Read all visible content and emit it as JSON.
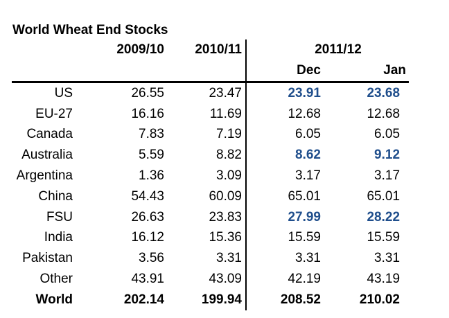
{
  "title": "World Wheat End Stocks",
  "colors": {
    "accent_blue": "#1F4E8C",
    "text": "#000000",
    "background": "#FFFFFF",
    "rule": "#000000"
  },
  "table": {
    "year_headers": [
      "2009/10",
      "2010/11",
      "2011/12"
    ],
    "sub_headers": [
      "Dec",
      "Jan"
    ],
    "rows": [
      {
        "label": "US",
        "values": [
          "26.55",
          "23.47",
          "23.91",
          "23.68"
        ],
        "highlight_dec_jan": true,
        "total": false
      },
      {
        "label": "EU-27",
        "values": [
          "16.16",
          "11.69",
          "12.68",
          "12.68"
        ],
        "highlight_dec_jan": false,
        "total": false
      },
      {
        "label": "Canada",
        "values": [
          "7.83",
          "7.19",
          "6.05",
          "6.05"
        ],
        "highlight_dec_jan": false,
        "total": false
      },
      {
        "label": "Australia",
        "values": [
          "5.59",
          "8.82",
          "8.62",
          "9.12"
        ],
        "highlight_dec_jan": true,
        "total": false
      },
      {
        "label": "Argentina",
        "values": [
          "1.36",
          "3.09",
          "3.17",
          "3.17"
        ],
        "highlight_dec_jan": false,
        "total": false
      },
      {
        "label": "China",
        "values": [
          "54.43",
          "60.09",
          "65.01",
          "65.01"
        ],
        "highlight_dec_jan": false,
        "total": false
      },
      {
        "label": "FSU",
        "values": [
          "26.63",
          "23.83",
          "27.99",
          "28.22"
        ],
        "highlight_dec_jan": true,
        "total": false
      },
      {
        "label": "India",
        "values": [
          "16.12",
          "15.36",
          "15.59",
          "15.59"
        ],
        "highlight_dec_jan": false,
        "total": false
      },
      {
        "label": "Pakistan",
        "values": [
          "3.56",
          "3.31",
          "3.31",
          "3.31"
        ],
        "highlight_dec_jan": false,
        "total": false
      },
      {
        "label": "Other",
        "values": [
          "43.91",
          "43.09",
          "42.19",
          "43.19"
        ],
        "highlight_dec_jan": false,
        "total": false
      },
      {
        "label": "World",
        "values": [
          "202.14",
          "199.94",
          "208.52",
          "210.02"
        ],
        "highlight_dec_jan": false,
        "total": true
      }
    ]
  }
}
